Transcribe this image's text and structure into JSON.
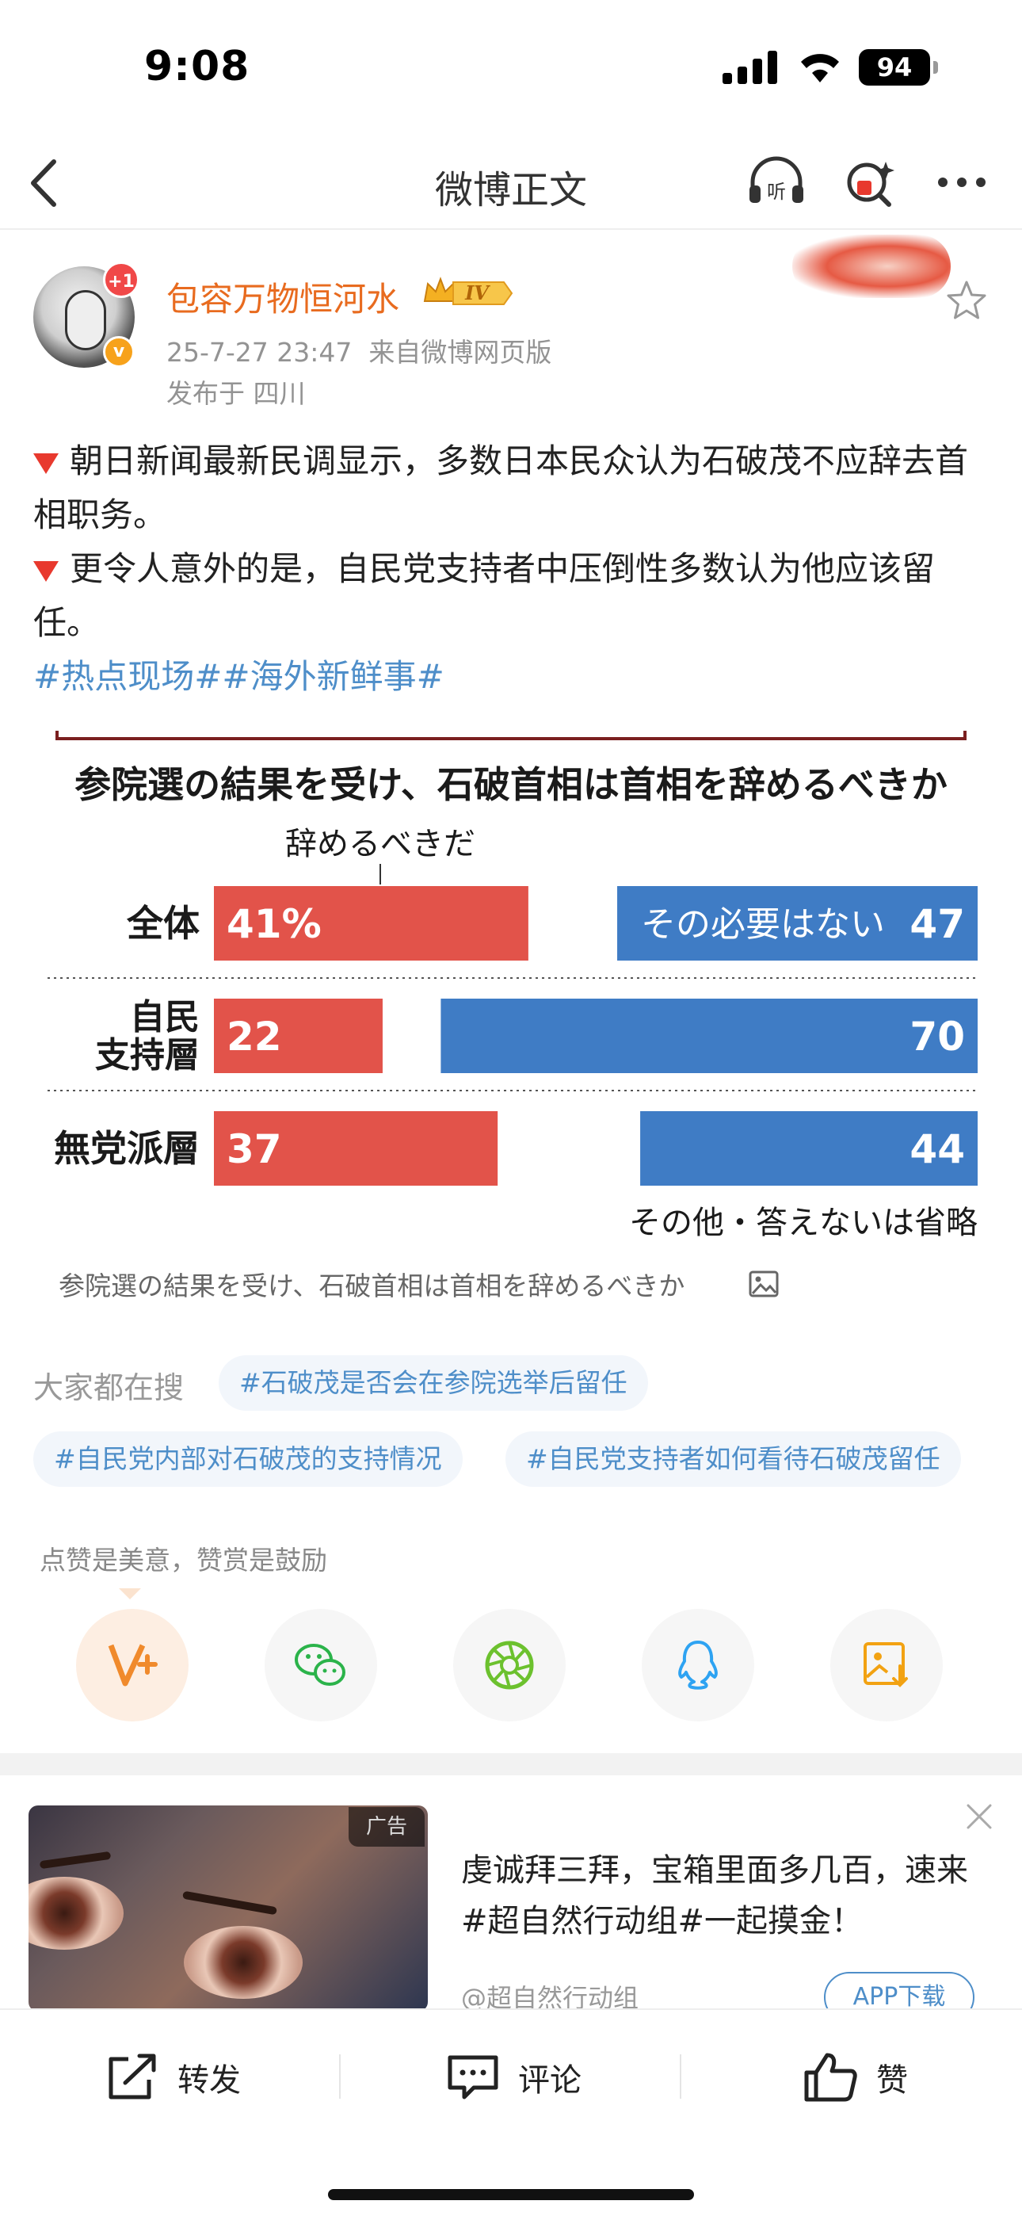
{
  "status_bar": {
    "time": "9:08",
    "battery": "94"
  },
  "nav": {
    "title": "微博正文"
  },
  "post": {
    "avatar_badge": "+1",
    "username": "包容万物恒河水",
    "level_badge": "IV",
    "timestamp": "25-7-27 23:47",
    "source": "来自微博网页版",
    "location": "发布于 四川",
    "paragraphs": [
      "朝日新闻最新民调显示，多数日本民众认为石破茂不应辞去首相职务。",
      "更令人意外的是，自民党支持者中压倒性多数认为他应该留任。"
    ],
    "hashtags": "#热点现场##海外新鲜事#",
    "image_caption": "参院選の結果を受け、石破首相は首相を辞めるべきか"
  },
  "chart_data": {
    "type": "bar",
    "title": "参院選の結果を受け、石破首相は首相を辞めるべきか",
    "categories": [
      "全体",
      "自民支持層",
      "無党派層"
    ],
    "category_lines": [
      [
        "全体"
      ],
      [
        "自民",
        "支持層"
      ],
      [
        "無党派層"
      ]
    ],
    "series": [
      {
        "name": "辞めるべきだ",
        "values": [
          41,
          22,
          37
        ],
        "labels": [
          "41%",
          "22",
          "37"
        ],
        "color": "#e2534a"
      },
      {
        "name": "その必要はない",
        "values": [
          47,
          70,
          44
        ],
        "labels": [
          "47",
          "70",
          "44"
        ],
        "color": "#3f7cc5"
      }
    ],
    "footnote": "その他・答えないは省略"
  },
  "search": {
    "label": "大家都在搜",
    "pills": [
      "#石破茂是否会在参院选举后留任",
      "#自民党内部对石破茂的支持情况",
      "#自民党支持者如何看待石破茂留任"
    ]
  },
  "praise": {
    "text": "点赞是美意，赞赏是鼓励"
  },
  "share_icons": [
    "weibo-reward-icon",
    "wechat-icon",
    "moments-icon",
    "qq-icon",
    "save-image-icon"
  ],
  "ad": {
    "tag": "广告",
    "text": "虔诚拜三拜，宝箱里面多几百，速来#超自然行动组#一起摸金！",
    "source": "@超自然行动组",
    "button": "APP下载"
  },
  "bottom_bar": {
    "repost": "转发",
    "comment": "评论",
    "like": "赞"
  }
}
